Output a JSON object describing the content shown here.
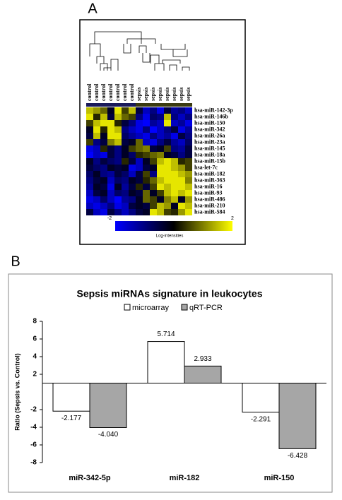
{
  "chart_data": [
    {
      "type": "heatmap",
      "panel_label": "A",
      "x": [
        "control",
        "control",
        "control",
        "control",
        "control",
        "control",
        "control",
        "sepsis",
        "sepsis",
        "sepsis",
        "sepsis",
        "sepsis",
        "sepsis",
        "sepsis",
        "sepsis"
      ],
      "y": [
        "hsa-miR-142-3p",
        "hsa-miR-146b",
        "hsa-miR-150",
        "hsa-miR-342",
        "hsa-miR-26a",
        "hsa-miR-23a",
        "hsa-miR-145",
        "hsa-miR-18a",
        "hsa-miR-15b",
        "hsa-let-7c",
        "hsa-miR-182",
        "hsa-miR-363",
        "hsa-miR-16",
        "hsa-miR-93",
        "hsa-miR-486",
        "hsa-miR-210",
        "hsa-miR-584"
      ],
      "values": [
        [
          1.5,
          1.2,
          0.8,
          -0.3,
          1.8,
          0.5,
          1.5,
          -0.5,
          -1.5,
          -1,
          -1.8,
          -0.5,
          -1.2,
          -1,
          -1.5
        ],
        [
          1.8,
          0.3,
          1.5,
          -0.5,
          1.5,
          0.8,
          0.5,
          -1,
          -1.8,
          -0.8,
          -1,
          1.5,
          -1,
          -1.5,
          -1
        ],
        [
          0.5,
          1.5,
          1.8,
          1.8,
          0.3,
          -0.5,
          -1,
          -1.8,
          -2,
          -1.2,
          -1.5,
          1.8,
          -1.5,
          -1.2,
          -1.8
        ],
        [
          -0.3,
          1.8,
          0.3,
          1.8,
          1.5,
          -1,
          -1.5,
          -1.8,
          -1,
          -2,
          -1.5,
          -1,
          -0.5,
          -1.8,
          -1.2
        ],
        [
          -0.5,
          1.5,
          -0.3,
          1.8,
          1.8,
          -0.8,
          -1.2,
          -1.5,
          -1.8,
          -1,
          -1.5,
          -1.2,
          -1.8,
          -0.5,
          -1
        ],
        [
          0.5,
          -1,
          -0.5,
          1,
          1.5,
          -0.5,
          -0.3,
          0.8,
          -1.5,
          -1.8,
          -1,
          -0.5,
          -1.2,
          -1.5,
          -0.8
        ],
        [
          -1.8,
          -1.5,
          0.3,
          -0.5,
          -1,
          -0.3,
          0.5,
          0.8,
          1,
          -0.5,
          -0.3,
          0.5,
          -1,
          -1.2,
          -0.5
        ],
        [
          -2,
          -1.5,
          -1.8,
          -0.5,
          -1,
          -0.3,
          -0.8,
          0.3,
          0.5,
          0.8,
          1,
          -0.3,
          -0.5,
          -1,
          -0.5
        ],
        [
          -0.3,
          -1,
          -0.5,
          -0.8,
          -1,
          0.3,
          -0.5,
          -1.5,
          -0.3,
          0.5,
          1.5,
          1.8,
          1.5,
          0.3,
          0.5
        ],
        [
          -0.5,
          -0.8,
          -1,
          -0.3,
          -0.5,
          -0.3,
          -1.8,
          -1.5,
          -0.5,
          -0.3,
          1.8,
          1.8,
          1.5,
          1.2,
          0.5
        ],
        [
          -0.8,
          -0.3,
          -1,
          -1.2,
          -0.5,
          -0.8,
          -1.5,
          -0.5,
          0.5,
          -1,
          1.8,
          1.8,
          1.8,
          1.5,
          1.2
        ],
        [
          -1,
          -0.5,
          -0.3,
          -1.5,
          -0.8,
          -1,
          -0.3,
          -0.5,
          0.3,
          0.8,
          1.5,
          1.8,
          1.8,
          1.8,
          1
        ],
        [
          -1.2,
          -0.3,
          -0.5,
          -1.8,
          -0.3,
          -1.2,
          -0.5,
          0.3,
          -0.5,
          0.5,
          1.8,
          1.5,
          1.8,
          1.8,
          1.5
        ],
        [
          -1.5,
          -0.5,
          -0.3,
          -1.5,
          -0.8,
          -1,
          -0.3,
          -0.5,
          0.8,
          -0.3,
          0.5,
          1.5,
          1.8,
          1.5,
          1.8
        ],
        [
          -1.8,
          -1.5,
          -0.8,
          -1.5,
          -2,
          -1.2,
          -1,
          -0.3,
          0.8,
          0.5,
          -0.3,
          1,
          1.5,
          -0.3,
          1.2
        ],
        [
          -1.5,
          -1.8,
          -1.5,
          -1,
          -1.8,
          -1.5,
          -0.5,
          -0.3,
          -0.5,
          0.5,
          1.5,
          1.2,
          -0.3,
          1.8,
          1.5
        ],
        [
          -0.5,
          -1.5,
          -1.8,
          -0.5,
          -1,
          -1.5,
          -1,
          -0.5,
          -0.3,
          1.8,
          1.5,
          0.5,
          0.3,
          1.2,
          1.8
        ]
      ],
      "colorbar": {
        "lim": [
          -2,
          2
        ],
        "ticks": [
          -2,
          2
        ],
        "label": "Log-intensities",
        "colors": [
          "#0000ff",
          "#000000",
          "#ffff00"
        ]
      }
    },
    {
      "type": "bar",
      "panel_label": "B",
      "title": "Sepsis miRNAs signature in leukocytes",
      "ylabel": "Ratio (Sepsis vs. Control)",
      "categories": [
        "miR-342-5p",
        "miR-182",
        "miR-150"
      ],
      "series": [
        {
          "name": "microarray",
          "color": "#ffffff",
          "values": [
            -2.177,
            5.714,
            -2.291
          ],
          "value_labels": [
            "-2.177",
            "5.714",
            "-2.291"
          ]
        },
        {
          "name": "qRT-PCR",
          "color": "#a6a6a6",
          "values": [
            -4.04,
            2.933,
            -6.428
          ],
          "value_labels": [
            "-4.040",
            "2.933",
            "-6.428"
          ]
        }
      ],
      "ylim": [
        -8,
        8
      ],
      "yticks": [
        -8,
        -6,
        -4,
        -2,
        2,
        4,
        6,
        8
      ],
      "baseline": 1
    }
  ]
}
